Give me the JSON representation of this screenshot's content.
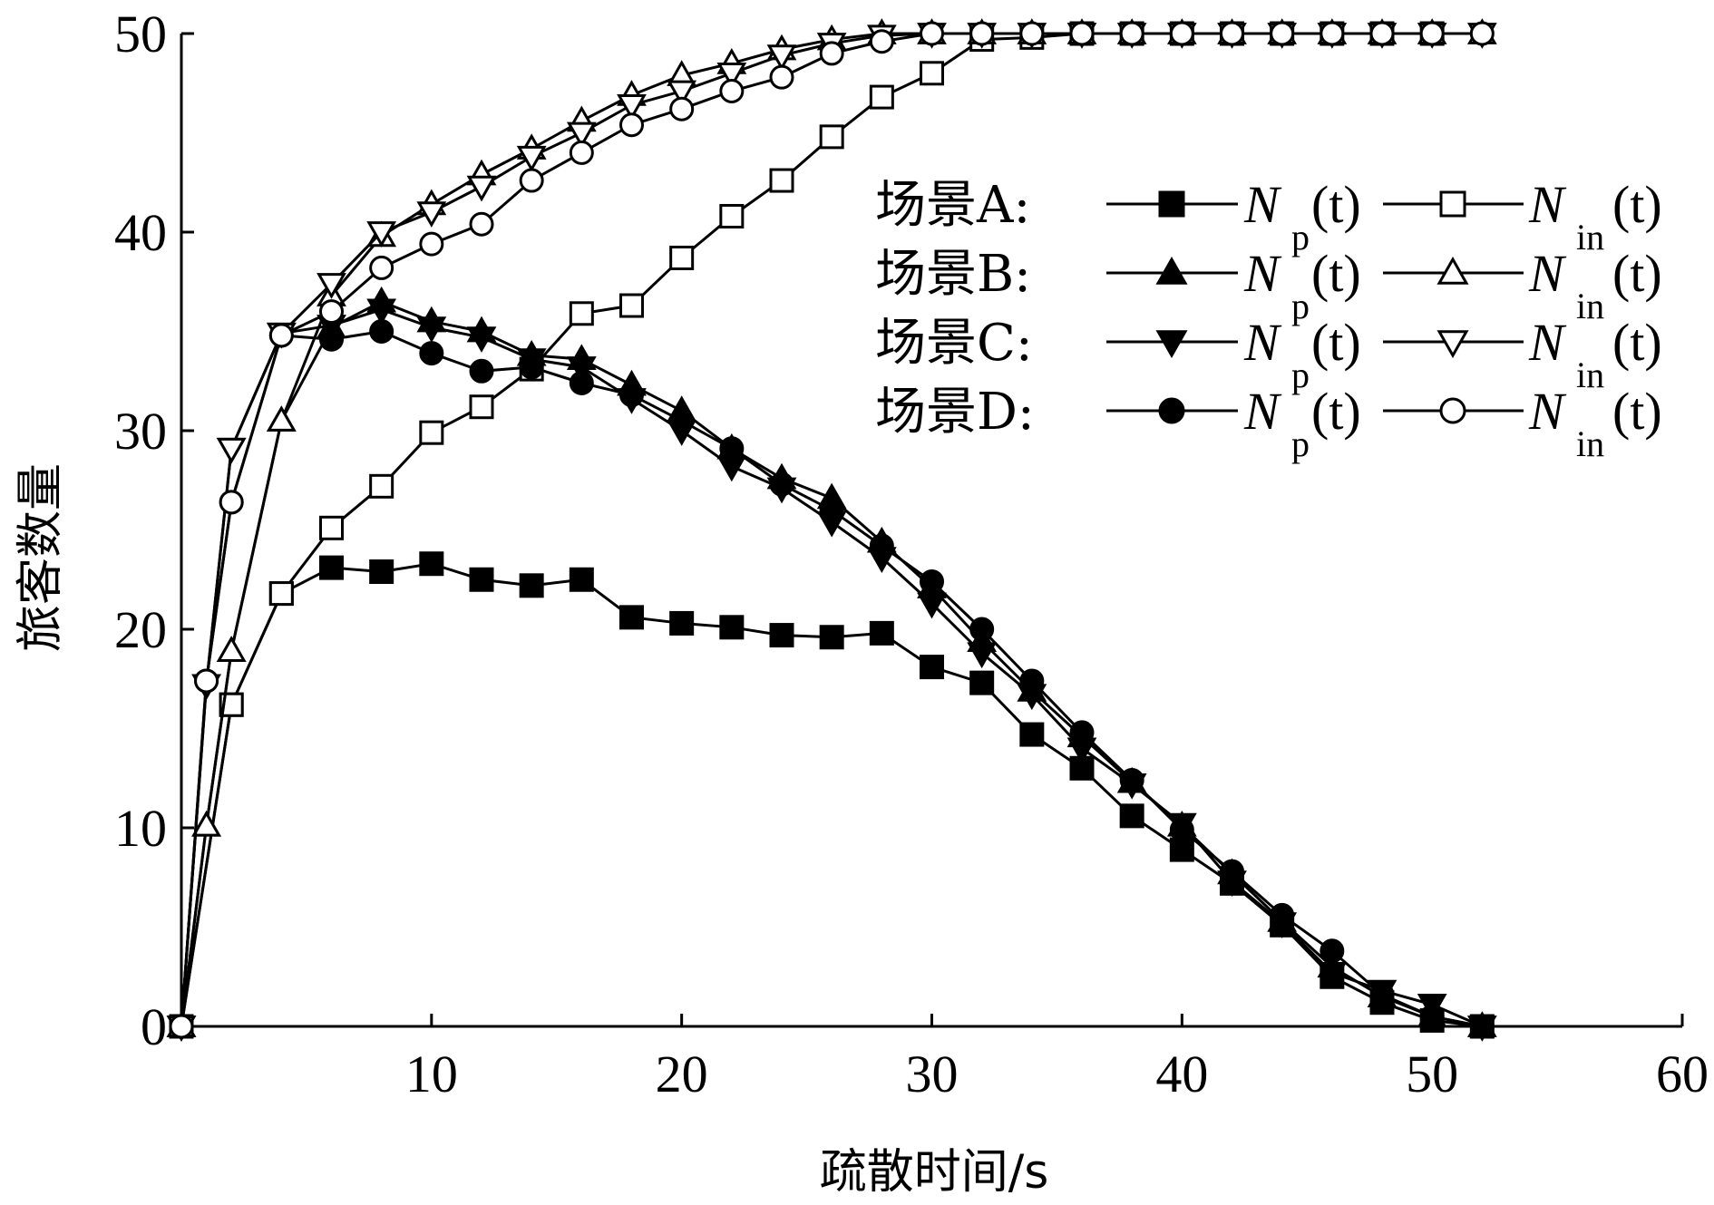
{
  "chart_data": {
    "type": "line",
    "title": "",
    "xlabel": "疏散时间/s",
    "ylabel": "旅客数量",
    "xlim": [
      0,
      60
    ],
    "ylim": [
      0,
      50
    ],
    "xticks": [
      10,
      20,
      30,
      40,
      50,
      60
    ],
    "yticks": [
      0,
      10,
      20,
      30,
      40,
      50
    ],
    "grid": false,
    "legend_position": "top-right",
    "legend": [
      {
        "scene": "场景A:",
        "series_np": "A-Np",
        "series_nin": "A-Nin"
      },
      {
        "scene": "场景B:",
        "series_np": "B-Np",
        "series_nin": "B-Nin"
      },
      {
        "scene": "场景C:",
        "series_np": "C-Np",
        "series_nin": "C-Nin"
      },
      {
        "scene": "场景D:",
        "series_np": "D-Np",
        "series_nin": "D-Nin"
      }
    ],
    "legend_symbols": {
      "N": "N",
      "sub_p": "p",
      "sub_in": "in",
      "arg": "(t)"
    },
    "series": [
      {
        "id": "A-Np",
        "marker": "square",
        "filled": true,
        "x": [
          0,
          2,
          4,
          6,
          8,
          10,
          12,
          14,
          16,
          18,
          20,
          22,
          24,
          26,
          28,
          30,
          32,
          34,
          36,
          38,
          40,
          42,
          44,
          46,
          48,
          50,
          52
        ],
        "y": [
          0,
          16.2,
          21.8,
          23.1,
          22.9,
          23.3,
          22.5,
          22.2,
          22.5,
          20.6,
          20.3,
          20.1,
          19.7,
          19.6,
          19.8,
          18.1,
          17.3,
          14.7,
          13.0,
          10.6,
          8.9,
          7.2,
          5.1,
          2.5,
          1.2,
          0.3,
          0
        ]
      },
      {
        "id": "A-Nin",
        "marker": "square",
        "filled": false,
        "x": [
          0,
          2,
          4,
          6,
          8,
          10,
          12,
          14,
          16,
          18,
          20,
          22,
          24,
          26,
          28,
          30,
          32,
          34,
          36,
          38,
          40,
          42,
          44,
          46,
          48,
          50
        ],
        "y": [
          0,
          16.2,
          21.8,
          25.1,
          27.2,
          29.9,
          31.2,
          33.1,
          35.9,
          36.3,
          38.7,
          40.8,
          42.6,
          44.8,
          46.8,
          48.0,
          49.7,
          49.8,
          50,
          50,
          50,
          50,
          50,
          50,
          50,
          50
        ]
      },
      {
        "id": "B-Np",
        "marker": "triangle-up",
        "filled": true,
        "x": [
          0,
          1,
          2,
          4,
          6,
          8,
          10,
          12,
          14,
          16,
          18,
          20,
          22,
          24,
          26,
          28,
          30,
          32,
          34,
          36,
          38,
          40,
          42,
          44,
          46,
          48,
          50,
          52
        ],
        "y": [
          0,
          10.1,
          18.9,
          30.5,
          35.2,
          36.5,
          35.5,
          35.0,
          33.8,
          33.6,
          32.3,
          31.0,
          29.1,
          27.6,
          26.6,
          24.4,
          22.1,
          19.4,
          16.9,
          14.6,
          12.3,
          10.1,
          7.7,
          5.3,
          3.0,
          1.5,
          0.5,
          0
        ]
      },
      {
        "id": "B-Nin",
        "marker": "triangle-up",
        "filled": false,
        "x": [
          0,
          1,
          2,
          4,
          6,
          8,
          10,
          12,
          14,
          16,
          18,
          20,
          22,
          24,
          26,
          28,
          30,
          32,
          34,
          36,
          38,
          40,
          42,
          44,
          46,
          48,
          50,
          52
        ],
        "y": [
          0,
          10.1,
          18.9,
          30.5,
          36.8,
          39.8,
          41.4,
          42.9,
          44.2,
          45.6,
          46.9,
          47.9,
          48.5,
          49.2,
          49.7,
          50,
          50,
          50,
          50,
          50,
          50,
          50,
          50,
          50,
          50,
          50,
          50,
          50
        ]
      },
      {
        "id": "C-Np",
        "marker": "triangle-down",
        "filled": true,
        "x": [
          0,
          1,
          2,
          4,
          6,
          8,
          10,
          12,
          14,
          16,
          18,
          20,
          22,
          24,
          26,
          28,
          30,
          32,
          34,
          36,
          38,
          40,
          42,
          44,
          46,
          48,
          50,
          52
        ],
        "y": [
          0,
          17.2,
          29.1,
          34.9,
          35.3,
          36.1,
          35.2,
          34.7,
          33.6,
          33.2,
          31.6,
          30.0,
          28.2,
          27.1,
          25.4,
          23.6,
          21.3,
          18.8,
          16.7,
          14.0,
          12.2,
          10.2,
          7.3,
          5.2,
          2.7,
          1.8,
          1.1,
          0
        ]
      },
      {
        "id": "C-Nin",
        "marker": "triangle-down",
        "filled": false,
        "x": [
          0,
          1,
          2,
          4,
          6,
          8,
          10,
          12,
          14,
          16,
          18,
          20,
          22,
          24,
          26,
          28,
          30,
          32,
          34,
          36,
          38,
          40,
          42,
          44,
          46,
          48,
          50,
          52
        ],
        "y": [
          0,
          17.2,
          29.1,
          34.9,
          37.4,
          40.0,
          41.0,
          42.3,
          43.8,
          45.0,
          46.4,
          47.1,
          48.0,
          48.9,
          49.5,
          49.9,
          50,
          50,
          50,
          50,
          50,
          50,
          50,
          50,
          50,
          50,
          50,
          50
        ]
      },
      {
        "id": "D-Np",
        "marker": "circle",
        "filled": true,
        "x": [
          0,
          1,
          2,
          4,
          6,
          8,
          10,
          12,
          14,
          16,
          18,
          20,
          22,
          24,
          26,
          28,
          30,
          32,
          34,
          36,
          38,
          40,
          42,
          44,
          46,
          48,
          50,
          52
        ],
        "y": [
          0,
          17.4,
          26.4,
          34.8,
          34.6,
          35.0,
          33.9,
          33.0,
          33.2,
          32.4,
          31.8,
          30.5,
          29.1,
          27.3,
          26.0,
          24.2,
          22.4,
          20.0,
          17.4,
          14.8,
          12.4,
          9.9,
          7.8,
          5.6,
          3.8,
          1.6,
          0.5,
          0
        ]
      },
      {
        "id": "D-Nin",
        "marker": "circle",
        "filled": false,
        "x": [
          0,
          1,
          2,
          4,
          6,
          8,
          10,
          12,
          14,
          16,
          18,
          20,
          22,
          24,
          26,
          28,
          30,
          32,
          34,
          36,
          38,
          40,
          42,
          44,
          46,
          48,
          50,
          52
        ],
        "y": [
          0,
          17.4,
          26.4,
          34.8,
          36.0,
          38.2,
          39.4,
          40.4,
          42.6,
          44.0,
          45.4,
          46.2,
          47.1,
          47.8,
          49.0,
          49.6,
          50,
          50,
          50,
          50,
          50,
          50,
          50,
          50,
          50,
          50,
          50,
          50
        ]
      }
    ]
  }
}
